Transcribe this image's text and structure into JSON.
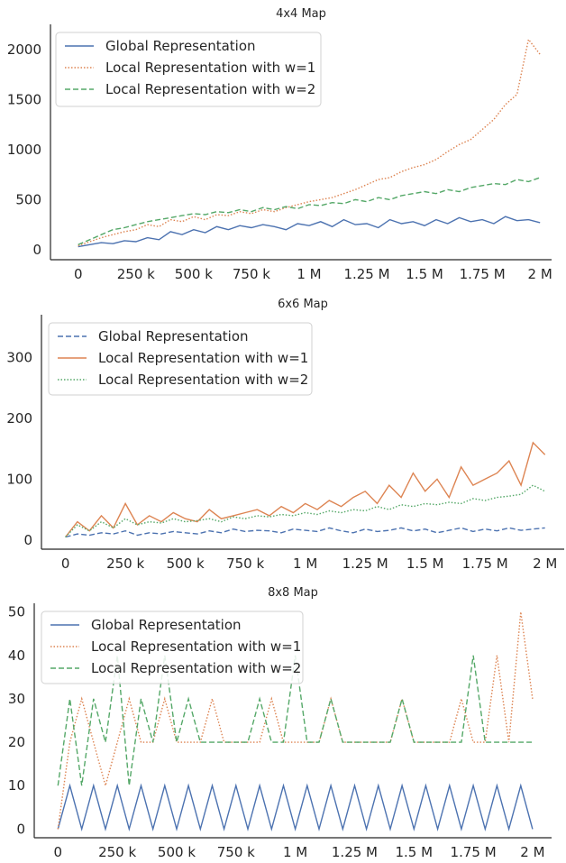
{
  "chart_data": [
    {
      "type": "line",
      "title": "4x4 Map",
      "xlabel": "",
      "ylabel": "",
      "xlim": [
        -120000,
        2050000
      ],
      "ylim": [
        -100,
        2250
      ],
      "x_ticks": [
        0,
        250000,
        500000,
        750000,
        1000000,
        1250000,
        1500000,
        1750000,
        2000000
      ],
      "x_tick_labels": [
        "0",
        "250 k",
        "500 k",
        "750 k",
        "1 M",
        "1.25 M",
        "1.5 M",
        "1.75 M",
        "2 M"
      ],
      "y_ticks": [
        0,
        500,
        1000,
        1500,
        2000
      ],
      "y_tick_labels": [
        "0",
        "500",
        "1000",
        "1500",
        "2000"
      ],
      "legend": "top-left",
      "grid": false,
      "series": [
        {
          "name": "Global Representation",
          "color": "#4c72b0",
          "dash": "solid",
          "x": [
            0,
            50000,
            100000,
            150000,
            200000,
            250000,
            300000,
            350000,
            400000,
            450000,
            500000,
            550000,
            600000,
            650000,
            700000,
            750000,
            800000,
            850000,
            900000,
            950000,
            1000000,
            1050000,
            1100000,
            1150000,
            1200000,
            1250000,
            1300000,
            1350000,
            1400000,
            1450000,
            1500000,
            1550000,
            1600000,
            1650000,
            1700000,
            1750000,
            1800000,
            1850000,
            1900000,
            1950000,
            2000000
          ],
          "y": [
            30,
            50,
            70,
            60,
            90,
            80,
            120,
            100,
            180,
            150,
            200,
            170,
            230,
            200,
            240,
            220,
            250,
            230,
            200,
            260,
            240,
            280,
            230,
            300,
            250,
            260,
            220,
            300,
            260,
            280,
            240,
            300,
            260,
            320,
            280,
            300,
            260,
            330,
            290,
            300,
            270
          ]
        },
        {
          "name": "Local Representation with w=1",
          "color": "#dd8452",
          "dash": "dotted",
          "x": [
            0,
            50000,
            100000,
            150000,
            200000,
            250000,
            300000,
            350000,
            400000,
            450000,
            500000,
            550000,
            600000,
            650000,
            700000,
            750000,
            800000,
            850000,
            900000,
            950000,
            1000000,
            1050000,
            1100000,
            1150000,
            1200000,
            1250000,
            1300000,
            1350000,
            1400000,
            1450000,
            1500000,
            1550000,
            1600000,
            1650000,
            1700000,
            1750000,
            1800000,
            1850000,
            1900000,
            1950000,
            2000000
          ],
          "y": [
            40,
            80,
            120,
            150,
            180,
            200,
            250,
            230,
            300,
            280,
            330,
            300,
            350,
            340,
            380,
            360,
            400,
            380,
            420,
            450,
            480,
            500,
            520,
            560,
            600,
            650,
            700,
            720,
            780,
            820,
            850,
            900,
            980,
            1050,
            1100,
            1200,
            1300,
            1450,
            1550,
            2100,
            1950
          ]
        },
        {
          "name": "Local Representation with w=2",
          "color": "#55a868",
          "dash": "dashed",
          "x": [
            0,
            50000,
            100000,
            150000,
            200000,
            250000,
            300000,
            350000,
            400000,
            450000,
            500000,
            550000,
            600000,
            650000,
            700000,
            750000,
            800000,
            850000,
            900000,
            950000,
            1000000,
            1050000,
            1100000,
            1150000,
            1200000,
            1250000,
            1300000,
            1350000,
            1400000,
            1450000,
            1500000,
            1550000,
            1600000,
            1650000,
            1700000,
            1750000,
            1800000,
            1850000,
            1900000,
            1950000,
            2000000
          ],
          "y": [
            50,
            100,
            150,
            200,
            220,
            250,
            280,
            300,
            320,
            340,
            360,
            350,
            380,
            370,
            400,
            380,
            420,
            400,
            430,
            410,
            450,
            440,
            470,
            460,
            500,
            480,
            520,
            500,
            540,
            560,
            580,
            560,
            600,
            580,
            620,
            640,
            660,
            650,
            700,
            680,
            720
          ]
        }
      ]
    },
    {
      "type": "line",
      "title": "6x6 Map",
      "xlabel": "",
      "ylabel": "",
      "xlim": [
        -100000,
        2080000
      ],
      "ylim": [
        -15,
        370
      ],
      "x_ticks": [
        0,
        250000,
        500000,
        750000,
        1000000,
        1250000,
        1500000,
        1750000,
        2000000
      ],
      "x_tick_labels": [
        "0",
        "250 k",
        "500 k",
        "750 k",
        "1 M",
        "1.25 M",
        "1.5 M",
        "1.75 M",
        "2 M"
      ],
      "y_ticks": [
        0,
        100,
        200,
        300
      ],
      "y_tick_labels": [
        "0",
        "100",
        "200",
        "300"
      ],
      "legend": "top-left",
      "grid": false,
      "series": [
        {
          "name": "Global Representation",
          "color": "#4c72b0",
          "dash": "dashed",
          "x": [
            0,
            50000,
            100000,
            150000,
            200000,
            250000,
            300000,
            350000,
            400000,
            450000,
            500000,
            550000,
            600000,
            650000,
            700000,
            750000,
            800000,
            850000,
            900000,
            950000,
            1000000,
            1050000,
            1100000,
            1150000,
            1200000,
            1250000,
            1300000,
            1350000,
            1400000,
            1450000,
            1500000,
            1550000,
            1600000,
            1650000,
            1700000,
            1750000,
            1800000,
            1850000,
            1900000,
            1950000,
            2000000
          ],
          "y": [
            5,
            10,
            8,
            12,
            10,
            15,
            8,
            12,
            10,
            14,
            12,
            10,
            15,
            12,
            18,
            14,
            16,
            15,
            12,
            18,
            16,
            14,
            20,
            15,
            12,
            18,
            14,
            16,
            20,
            15,
            18,
            12,
            16,
            20,
            14,
            18,
            15,
            20,
            16,
            18,
            20
          ]
        },
        {
          "name": "Local Representation with w=1",
          "color": "#dd8452",
          "dash": "solid",
          "x": [
            0,
            50000,
            100000,
            150000,
            200000,
            250000,
            300000,
            350000,
            400000,
            450000,
            500000,
            550000,
            600000,
            650000,
            700000,
            750000,
            800000,
            850000,
            900000,
            950000,
            1000000,
            1050000,
            1100000,
            1150000,
            1200000,
            1250000,
            1300000,
            1350000,
            1400000,
            1450000,
            1500000,
            1550000,
            1600000,
            1650000,
            1700000,
            1750000,
            1800000,
            1850000,
            1900000,
            1950000,
            2000000
          ],
          "y": [
            5,
            30,
            15,
            40,
            20,
            60,
            25,
            40,
            30,
            45,
            35,
            30,
            50,
            35,
            40,
            45,
            50,
            40,
            55,
            45,
            60,
            50,
            65,
            55,
            70,
            80,
            60,
            90,
            70,
            110,
            80,
            100,
            70,
            120,
            90,
            100,
            110,
            130,
            90,
            160,
            140
          ]
        },
        {
          "name": "Local Representation with w=2",
          "color": "#55a868",
          "dash": "dotted",
          "x": [
            0,
            50000,
            100000,
            150000,
            200000,
            250000,
            300000,
            350000,
            400000,
            450000,
            500000,
            550000,
            600000,
            650000,
            700000,
            750000,
            800000,
            850000,
            900000,
            950000,
            1000000,
            1050000,
            1100000,
            1150000,
            1200000,
            1250000,
            1300000,
            1350000,
            1400000,
            1450000,
            1500000,
            1550000,
            1600000,
            1650000,
            1700000,
            1750000,
            1800000,
            1850000,
            1900000,
            1950000,
            2000000
          ],
          "y": [
            5,
            25,
            15,
            30,
            20,
            35,
            25,
            30,
            28,
            35,
            30,
            32,
            35,
            30,
            38,
            35,
            40,
            38,
            42,
            40,
            45,
            42,
            48,
            45,
            50,
            48,
            55,
            50,
            58,
            55,
            60,
            58,
            62,
            60,
            68,
            65,
            70,
            72,
            75,
            90,
            80
          ]
        }
      ]
    },
    {
      "type": "line",
      "title": "8x8 Map",
      "xlabel": "",
      "ylabel": "",
      "xlim": [
        -100000,
        2080000
      ],
      "ylim": [
        -2,
        52
      ],
      "x_ticks": [
        0,
        250000,
        500000,
        750000,
        1000000,
        1250000,
        1500000,
        1750000,
        2000000
      ],
      "x_tick_labels": [
        "0",
        "250 k",
        "500 k",
        "750 k",
        "1 M",
        "1.25 M",
        "1.5 M",
        "1.75 M",
        "2 M"
      ],
      "y_ticks": [
        0,
        10,
        20,
        30,
        40,
        50
      ],
      "y_tick_labels": [
        "0",
        "10",
        "20",
        "30",
        "40",
        "50"
      ],
      "legend": "top-left",
      "grid": false,
      "series": [
        {
          "name": "Global Representation",
          "color": "#4c72b0",
          "dash": "solid",
          "x": [
            0,
            50000,
            100000,
            150000,
            200000,
            250000,
            300000,
            350000,
            400000,
            450000,
            500000,
            550000,
            600000,
            650000,
            700000,
            750000,
            800000,
            850000,
            900000,
            950000,
            1000000,
            1050000,
            1100000,
            1150000,
            1200000,
            1250000,
            1300000,
            1350000,
            1400000,
            1450000,
            1500000,
            1550000,
            1600000,
            1650000,
            1700000,
            1750000,
            1800000,
            1850000,
            1900000,
            1950000,
            2000000
          ],
          "y": [
            0,
            10,
            0,
            10,
            0,
            10,
            0,
            10,
            0,
            10,
            0,
            10,
            0,
            10,
            0,
            10,
            0,
            10,
            0,
            10,
            0,
            10,
            0,
            10,
            0,
            10,
            0,
            10,
            0,
            10,
            0,
            10,
            0,
            10,
            0,
            10,
            0,
            10,
            0,
            10,
            0
          ]
        },
        {
          "name": "Local Representation with w=1",
          "color": "#dd8452",
          "dash": "dotted",
          "x": [
            0,
            50000,
            100000,
            150000,
            200000,
            250000,
            300000,
            350000,
            400000,
            450000,
            500000,
            550000,
            600000,
            650000,
            700000,
            750000,
            800000,
            850000,
            900000,
            950000,
            1000000,
            1050000,
            1100000,
            1150000,
            1200000,
            1250000,
            1300000,
            1350000,
            1400000,
            1450000,
            1500000,
            1550000,
            1600000,
            1650000,
            1700000,
            1750000,
            1800000,
            1850000,
            1900000,
            1950000,
            2000000
          ],
          "y": [
            0,
            20,
            30,
            20,
            10,
            20,
            30,
            20,
            20,
            30,
            20,
            20,
            20,
            30,
            20,
            20,
            20,
            20,
            30,
            20,
            20,
            20,
            20,
            30,
            20,
            20,
            20,
            20,
            20,
            30,
            20,
            20,
            20,
            20,
            30,
            20,
            20,
            40,
            20,
            50,
            30
          ]
        },
        {
          "name": "Local Representation with w=2",
          "color": "#55a868",
          "dash": "dashed",
          "x": [
            0,
            50000,
            100000,
            150000,
            200000,
            250000,
            300000,
            350000,
            400000,
            450000,
            500000,
            550000,
            600000,
            650000,
            700000,
            750000,
            800000,
            850000,
            900000,
            950000,
            1000000,
            1050000,
            1100000,
            1150000,
            1200000,
            1250000,
            1300000,
            1350000,
            1400000,
            1450000,
            1500000,
            1550000,
            1600000,
            1650000,
            1700000,
            1750000,
            1800000,
            1850000,
            1900000,
            1950000,
            2000000
          ],
          "y": [
            10,
            30,
            10,
            30,
            20,
            40,
            10,
            30,
            20,
            40,
            20,
            30,
            20,
            20,
            20,
            20,
            20,
            30,
            20,
            20,
            40,
            20,
            20,
            30,
            20,
            20,
            20,
            20,
            20,
            30,
            20,
            20,
            20,
            20,
            20,
            40,
            20,
            20,
            20,
            20,
            20
          ]
        }
      ]
    }
  ]
}
